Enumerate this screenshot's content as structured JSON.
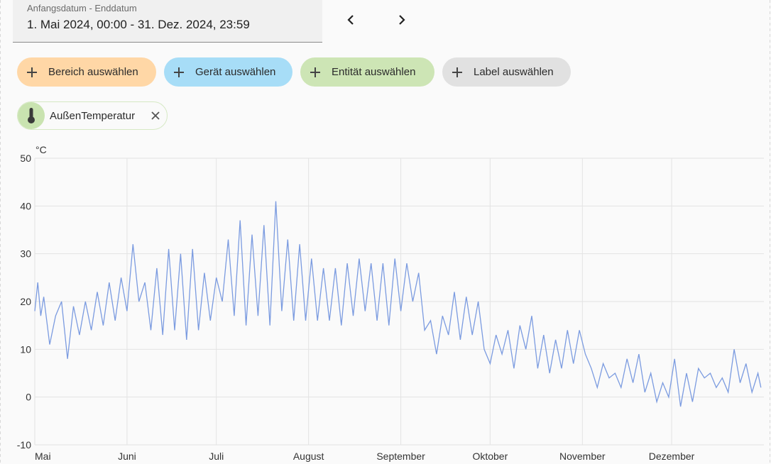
{
  "date_range": {
    "label": "Anfangsdatum - Enddatum",
    "value": "1. Mai 2024, 00:00 - 31. Dez. 2024, 23:59"
  },
  "nav": {
    "prev_icon": "chevron-left-icon",
    "next_icon": "chevron-right-icon"
  },
  "filters": [
    {
      "label": "Bereich auswählen",
      "icon": "plus-icon",
      "color": "#ffd7a6"
    },
    {
      "label": "Gerät auswählen",
      "icon": "plus-icon",
      "color": "#a7ddf7"
    },
    {
      "label": "Entität auswählen",
      "icon": "plus-icon",
      "color": "#cde5b5"
    },
    {
      "label": "Label auswählen",
      "icon": "plus-icon",
      "color": "#e1e1e1"
    }
  ],
  "selected_entity": {
    "label": "AußenTemperatur",
    "icon": "thermometer-icon",
    "remove_icon": "close-icon"
  },
  "chart_data": {
    "type": "line",
    "ylabel": "°C",
    "ylim": [
      -10,
      50
    ],
    "yticks": [
      50,
      40,
      30,
      20,
      10,
      0,
      -10
    ],
    "xlim": [
      "2024-05-01",
      "2025-01-01"
    ],
    "xticks": [
      {
        "label": "Mai",
        "date": "2024-05-01"
      },
      {
        "label": "Juni",
        "date": "2024-06-01"
      },
      {
        "label": "Juli",
        "date": "2024-07-01"
      },
      {
        "label": "August",
        "date": "2024-08-01"
      },
      {
        "label": "September",
        "date": "2024-09-01"
      },
      {
        "label": "Oktober",
        "date": "2024-10-01"
      },
      {
        "label": "November",
        "date": "2024-11-01"
      },
      {
        "label": "Dezember",
        "date": "2024-12-01"
      }
    ],
    "grid": true,
    "line_color": "#7b9be0",
    "series": [
      {
        "name": "",
        "points": [
          [
            "2024-05-01",
            18
          ],
          [
            "2024-05-02",
            24
          ],
          [
            "2024-05-03",
            17
          ],
          [
            "2024-05-04",
            21
          ],
          [
            "2024-05-06",
            11
          ],
          [
            "2024-05-08",
            17
          ],
          [
            "2024-05-10",
            20
          ],
          [
            "2024-05-12",
            8
          ],
          [
            "2024-05-14",
            19
          ],
          [
            "2024-05-16",
            13
          ],
          [
            "2024-05-18",
            20
          ],
          [
            "2024-05-20",
            14
          ],
          [
            "2024-05-22",
            22
          ],
          [
            "2024-05-24",
            15
          ],
          [
            "2024-05-26",
            24
          ],
          [
            "2024-05-28",
            16
          ],
          [
            "2024-05-30",
            25
          ],
          [
            "2024-06-01",
            18
          ],
          [
            "2024-06-03",
            32
          ],
          [
            "2024-06-05",
            20
          ],
          [
            "2024-06-07",
            24
          ],
          [
            "2024-06-09",
            14
          ],
          [
            "2024-06-11",
            27
          ],
          [
            "2024-06-13",
            13
          ],
          [
            "2024-06-15",
            31
          ],
          [
            "2024-06-17",
            14
          ],
          [
            "2024-06-19",
            30
          ],
          [
            "2024-06-21",
            12
          ],
          [
            "2024-06-23",
            31
          ],
          [
            "2024-06-25",
            14
          ],
          [
            "2024-06-27",
            26
          ],
          [
            "2024-06-29",
            16
          ],
          [
            "2024-07-01",
            25
          ],
          [
            "2024-07-03",
            20
          ],
          [
            "2024-07-05",
            33
          ],
          [
            "2024-07-07",
            17
          ],
          [
            "2024-07-09",
            37
          ],
          [
            "2024-07-11",
            15
          ],
          [
            "2024-07-13",
            34
          ],
          [
            "2024-07-15",
            17
          ],
          [
            "2024-07-17",
            36
          ],
          [
            "2024-07-19",
            15
          ],
          [
            "2024-07-21",
            41
          ],
          [
            "2024-07-23",
            18
          ],
          [
            "2024-07-25",
            33
          ],
          [
            "2024-07-27",
            16
          ],
          [
            "2024-07-29",
            32
          ],
          [
            "2024-07-31",
            16
          ],
          [
            "2024-08-02",
            29
          ],
          [
            "2024-08-04",
            16
          ],
          [
            "2024-08-06",
            27
          ],
          [
            "2024-08-08",
            16
          ],
          [
            "2024-08-10",
            27
          ],
          [
            "2024-08-12",
            15
          ],
          [
            "2024-08-14",
            28
          ],
          [
            "2024-08-16",
            17
          ],
          [
            "2024-08-18",
            29
          ],
          [
            "2024-08-20",
            18
          ],
          [
            "2024-08-22",
            28
          ],
          [
            "2024-08-24",
            16
          ],
          [
            "2024-08-26",
            28
          ],
          [
            "2024-08-28",
            15
          ],
          [
            "2024-08-30",
            29
          ],
          [
            "2024-09-01",
            18
          ],
          [
            "2024-09-03",
            28
          ],
          [
            "2024-09-05",
            20
          ],
          [
            "2024-09-07",
            26
          ],
          [
            "2024-09-09",
            14
          ],
          [
            "2024-09-11",
            16
          ],
          [
            "2024-09-13",
            9
          ],
          [
            "2024-09-15",
            17
          ],
          [
            "2024-09-17",
            13
          ],
          [
            "2024-09-19",
            22
          ],
          [
            "2024-09-21",
            12
          ],
          [
            "2024-09-23",
            21
          ],
          [
            "2024-09-25",
            13
          ],
          [
            "2024-09-27",
            20
          ],
          [
            "2024-09-29",
            10
          ],
          [
            "2024-10-01",
            7
          ],
          [
            "2024-10-03",
            13
          ],
          [
            "2024-10-05",
            9
          ],
          [
            "2024-10-07",
            14
          ],
          [
            "2024-10-09",
            6
          ],
          [
            "2024-10-11",
            15
          ],
          [
            "2024-10-13",
            10
          ],
          [
            "2024-10-15",
            17
          ],
          [
            "2024-10-17",
            6
          ],
          [
            "2024-10-19",
            13
          ],
          [
            "2024-10-21",
            5
          ],
          [
            "2024-10-23",
            12
          ],
          [
            "2024-10-25",
            6
          ],
          [
            "2024-10-27",
            14
          ],
          [
            "2024-10-29",
            7
          ],
          [
            "2024-10-31",
            14
          ],
          [
            "2024-11-02",
            9
          ],
          [
            "2024-11-04",
            6
          ],
          [
            "2024-11-06",
            2
          ],
          [
            "2024-11-08",
            7
          ],
          [
            "2024-11-10",
            4
          ],
          [
            "2024-11-12",
            5
          ],
          [
            "2024-11-14",
            2
          ],
          [
            "2024-11-16",
            8
          ],
          [
            "2024-11-18",
            3
          ],
          [
            "2024-11-20",
            9
          ],
          [
            "2024-11-22",
            1
          ],
          [
            "2024-11-24",
            5
          ],
          [
            "2024-11-26",
            -1
          ],
          [
            "2024-11-28",
            3
          ],
          [
            "2024-11-30",
            0
          ],
          [
            "2024-12-02",
            8
          ],
          [
            "2024-12-04",
            -2
          ],
          [
            "2024-12-06",
            5
          ],
          [
            "2024-12-08",
            -1
          ],
          [
            "2024-12-10",
            6
          ],
          [
            "2024-12-12",
            4
          ],
          [
            "2024-12-14",
            5
          ],
          [
            "2024-12-16",
            2
          ],
          [
            "2024-12-18",
            4
          ],
          [
            "2024-12-20",
            1
          ],
          [
            "2024-12-22",
            10
          ],
          [
            "2024-12-24",
            3
          ],
          [
            "2024-12-26",
            7
          ],
          [
            "2024-12-28",
            1
          ],
          [
            "2024-12-30",
            5
          ],
          [
            "2024-12-31",
            2
          ]
        ]
      }
    ]
  }
}
